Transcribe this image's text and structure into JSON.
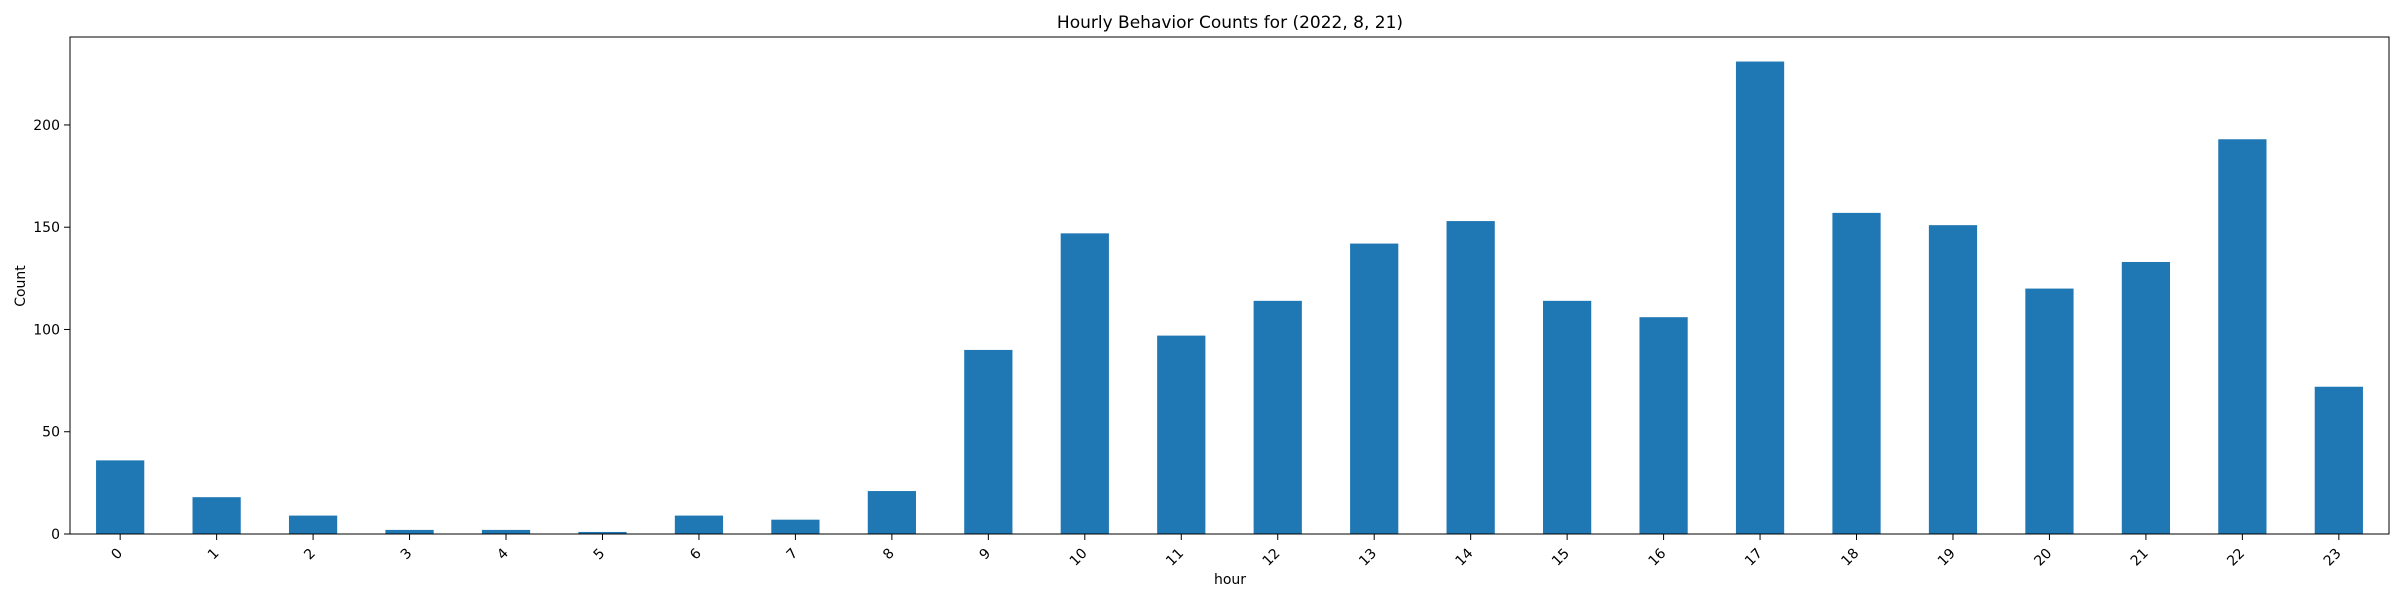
{
  "chart_data": {
    "type": "bar",
    "title": "Hourly Behavior Counts for (2022, 8, 21)",
    "xlabel": "hour",
    "ylabel": "Count",
    "categories": [
      "0",
      "1",
      "2",
      "3",
      "4",
      "5",
      "6",
      "7",
      "8",
      "9",
      "10",
      "11",
      "12",
      "13",
      "14",
      "15",
      "16",
      "17",
      "18",
      "19",
      "20",
      "21",
      "22",
      "23"
    ],
    "values": [
      36,
      18,
      9,
      2,
      2,
      1,
      9,
      7,
      21,
      90,
      147,
      97,
      114,
      142,
      153,
      114,
      106,
      231,
      157,
      151,
      120,
      133,
      193,
      72
    ],
    "yticks": [
      0,
      50,
      100,
      150,
      200
    ],
    "ylim": [
      0,
      243
    ],
    "grid": false,
    "legend": "none",
    "bar_color": "#1f77b4",
    "x_tick_rotation": 45
  }
}
